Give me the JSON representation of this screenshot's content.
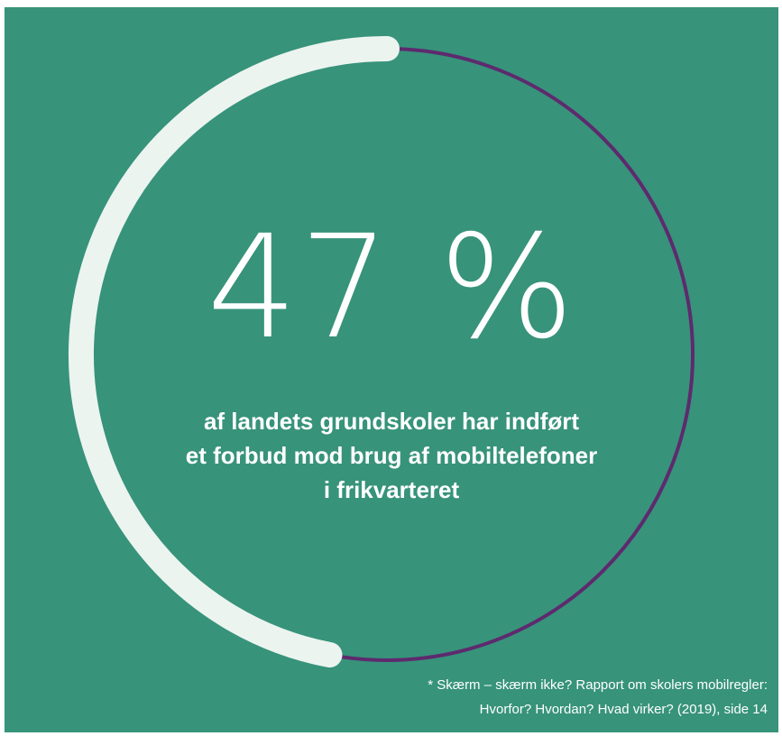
{
  "colors": {
    "background": "#37937A",
    "filled_arc": "#ECF4F0",
    "remaining_arc": "#5E2A6E",
    "text": "#FFFFFF"
  },
  "chart_data": {
    "type": "pie",
    "variant": "progress-ring",
    "value": 47,
    "max": 100,
    "display_value": "47 %",
    "caption_lines": [
      "af landets grundskoler har indført",
      "et forbud mod brug af mobiltelefoner",
      "i frikvarteret"
    ],
    "source_lines": [
      "* Skærm – skærm ikke? Rapport om skolers mobilregler:",
      "Hvorfor? Hvordan? Hvad virker? (2019), side 14"
    ]
  }
}
